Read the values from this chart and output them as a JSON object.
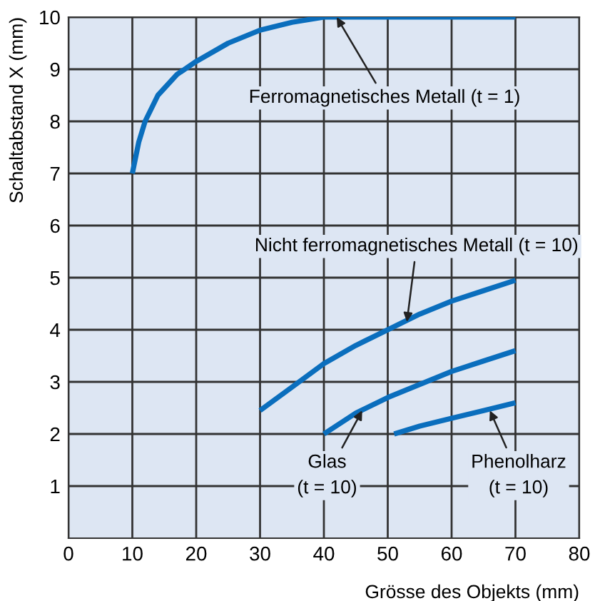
{
  "chart_data": {
    "type": "line",
    "xlabel": "Grösse des Objekts (mm)",
    "ylabel": "Schaltabstand X (mm)",
    "xlim": [
      0,
      80
    ],
    "ylim": [
      0,
      10
    ],
    "xticks": [
      0,
      10,
      20,
      30,
      40,
      50,
      60,
      70,
      80
    ],
    "yticks": [
      1,
      2,
      3,
      4,
      5,
      6,
      7,
      8,
      9,
      10
    ],
    "grid": true,
    "marker": "none",
    "line_style": "solid",
    "series": [
      {
        "color": "#0a6ebd",
        "x": [
          10,
          11,
          12,
          14,
          17,
          20,
          25,
          30,
          35,
          40,
          70
        ],
        "values": [
          7,
          7.6,
          8.0,
          8.5,
          8.9,
          9.15,
          9.5,
          9.75,
          9.9,
          10,
          10
        ]
      },
      {
        "color": "#0a6ebd",
        "x": [
          30,
          35,
          40,
          45,
          50,
          55,
          60,
          65,
          70
        ],
        "values": [
          2.45,
          2.9,
          3.35,
          3.7,
          4.0,
          4.3,
          4.55,
          4.75,
          4.95
        ]
      },
      {
        "color": "#0a6ebd",
        "x": [
          40,
          45,
          50,
          55,
          60,
          65,
          70
        ],
        "values": [
          2.0,
          2.4,
          2.7,
          2.95,
          3.2,
          3.4,
          3.6
        ]
      },
      {
        "color": "#0a6ebd",
        "x": [
          51,
          55,
          60,
          65,
          70
        ],
        "values": [
          2.0,
          2.15,
          2.3,
          2.45,
          2.6
        ]
      }
    ],
    "annotations": [
      {
        "text": "Ferromagnetisches Metall (t = 1)",
        "x": 42,
        "y": 10
      },
      {
        "text": "Nicht ferromagnetisches Metall (t = 10)",
        "x": 53,
        "y": 4.15
      },
      {
        "text": "Glas\n(t = 10)",
        "x": 46,
        "y": 2.45
      },
      {
        "text": "Phenolharz\n(t = 10)",
        "x": 66,
        "y": 2.45
      }
    ]
  }
}
